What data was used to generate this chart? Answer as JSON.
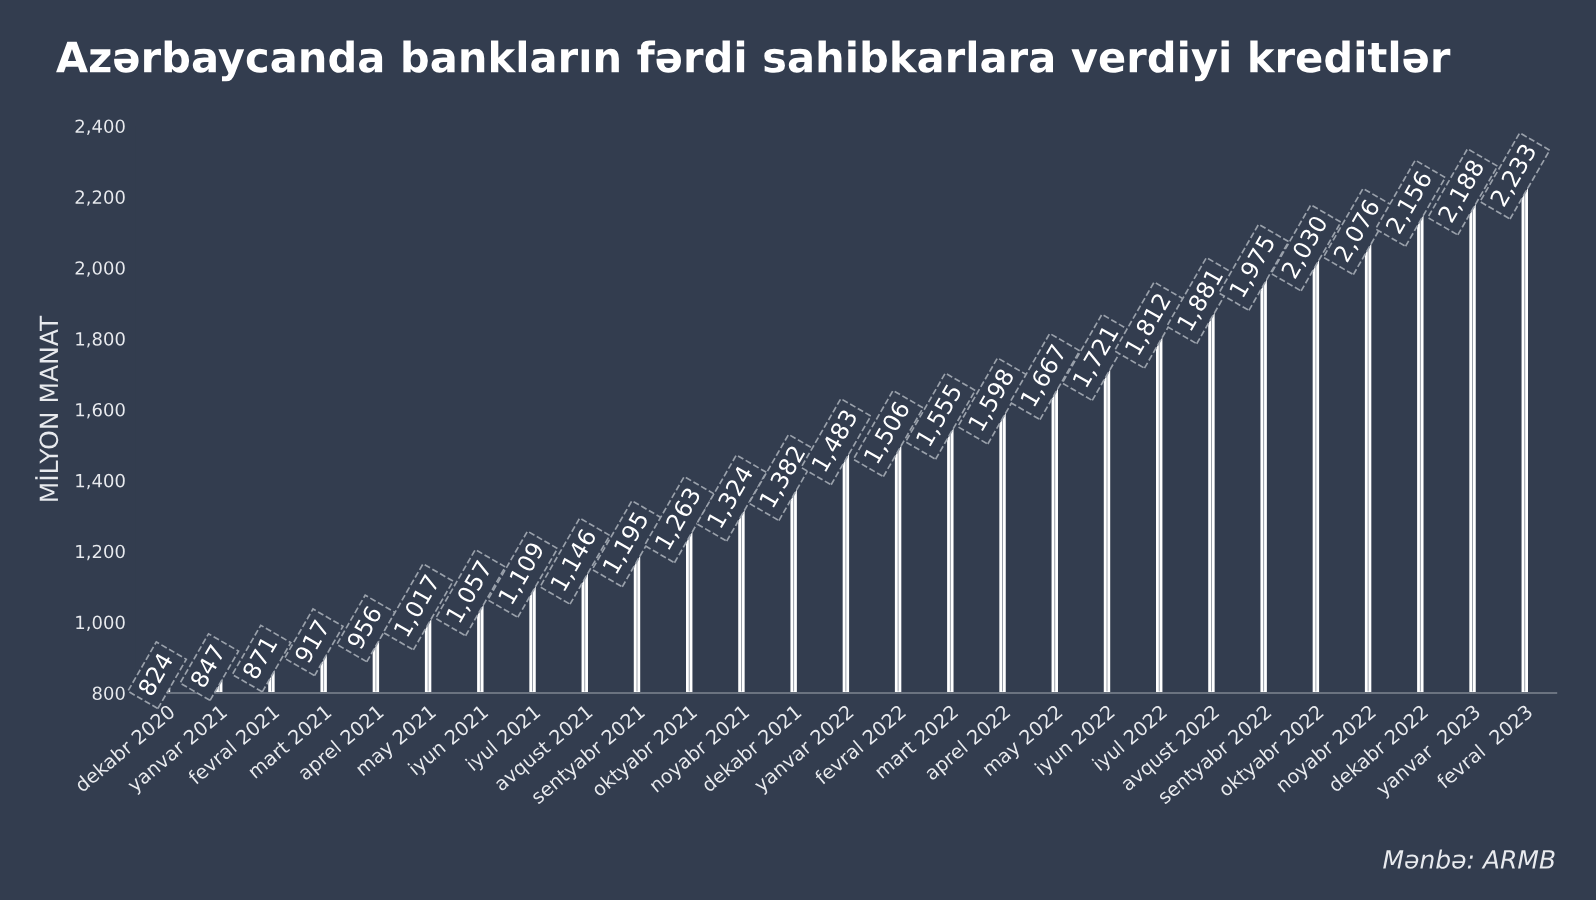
{
  "chart_data": {
    "type": "bar",
    "title": "Azərbaycanda bankların fərdi sahibkarlara verdiyi kreditlər",
    "ylabel": "MİLYON MANAT",
    "categories": [
      "dekabr 2020",
      "yanvar 2021",
      "fevral 2021",
      "mart 2021",
      "aprel 2021",
      "may 2021",
      "iyun 2021",
      "iyul 2021",
      "avqust 2021",
      "sentyabr 2021",
      "oktyabr 2021",
      "noyabr 2021",
      "dekabr 2021",
      "yanvar 2022",
      "fevral 2022",
      "mart 2022",
      "aprel 2022",
      "may 2022",
      "iyun 2022",
      "iyul 2022",
      "avqust 2022",
      "sentyabr 2022",
      "oktyabr 2022",
      "noyabr 2022",
      "dekabr 2022",
      "yanvar  2023",
      "fevral  2023"
    ],
    "values": [
      824,
      847,
      871,
      917,
      956,
      1017,
      1057,
      1109,
      1146,
      1195,
      1263,
      1324,
      1382,
      1483,
      1506,
      1555,
      1598,
      1667,
      1721,
      1812,
      1881,
      1975,
      2030,
      2076,
      2156,
      2188,
      2233
    ],
    "value_labels": [
      "824",
      "847",
      "871",
      "917",
      "956",
      "1,017",
      "1,057",
      "1,109",
      "1,146",
      "1,195",
      "1,263",
      "1,324",
      "1,382",
      "1,483",
      "1,506",
      "1,555",
      "1,598",
      "1,667",
      "1,721",
      "1,812",
      "1,881",
      "1,975",
      "2,030",
      "2,076",
      "2,156",
      "2,188",
      "2,233"
    ],
    "color": "#8a919c",
    "ylim": [
      800,
      2400
    ],
    "yticks": [
      800,
      {
        "value": 1000,
        "label": "1,000"
      },
      {
        "value": 1200,
        "label": "1,200"
      },
      {
        "value": 1400,
        "label": "1,400"
      },
      {
        "value": 1600,
        "label": "1,600"
      },
      {
        "value": 1800,
        "label": "1,800"
      },
      {
        "value": 2000,
        "label": "2,000"
      },
      {
        "value": 2200,
        "label": "2,200"
      },
      {
        "value": 2400,
        "label": "2,400"
      }
    ],
    "grid": false,
    "legend": false,
    "annotations": [
      "Mənbə: ARMB"
    ]
  }
}
